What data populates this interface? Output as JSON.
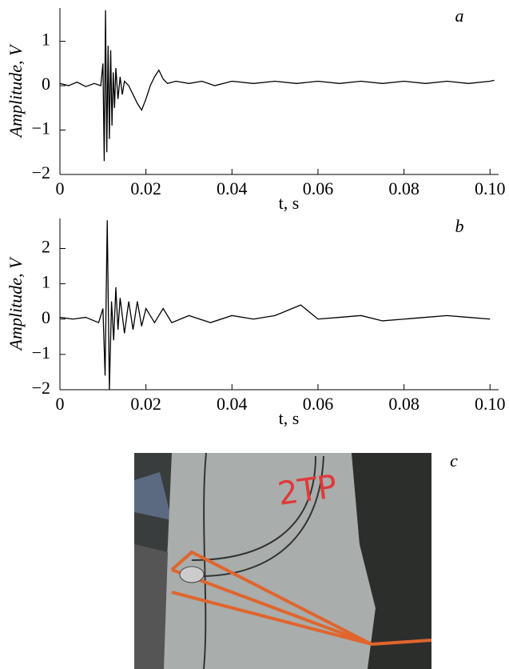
{
  "chart_data": [
    {
      "type": "line",
      "panel_label": "a",
      "xlabel": "t, s",
      "ylabel": "Amplitude, V",
      "xlim": [
        0,
        0.102
      ],
      "ylim": [
        -2,
        1.75
      ],
      "xticks": [
        0,
        0.02,
        0.04,
        0.06,
        0.08,
        {
          "value": 0.1,
          "label": "0.10"
        }
      ],
      "yticks": [
        {
          "value": -2,
          "label": "−2"
        },
        {
          "value": -1,
          "label": "−1"
        },
        0,
        1
      ],
      "x": [
        0,
        0.002,
        0.004,
        0.006,
        0.008,
        0.0095,
        0.01,
        0.0103,
        0.0106,
        0.0109,
        0.0112,
        0.0115,
        0.0118,
        0.0121,
        0.0124,
        0.0127,
        0.013,
        0.0135,
        0.014,
        0.0145,
        0.015,
        0.016,
        0.017,
        0.018,
        0.019,
        0.02,
        0.021,
        0.022,
        0.023,
        0.024,
        0.025,
        0.027,
        0.03,
        0.033,
        0.036,
        0.04,
        0.045,
        0.05,
        0.055,
        0.06,
        0.065,
        0.07,
        0.075,
        0.08,
        0.085,
        0.09,
        0.095,
        0.1,
        0.101
      ],
      "series": [
        {
          "color": "#000000",
          "values": [
            0.05,
            0.0,
            0.08,
            -0.02,
            0.05,
            0.0,
            0.5,
            -1.7,
            1.7,
            -1.5,
            0.9,
            -1.2,
            0.8,
            -0.9,
            0.3,
            -0.5,
            0.4,
            -0.3,
            0.2,
            -0.2,
            0.1,
            0.0,
            -0.2,
            -0.4,
            -0.55,
            -0.3,
            0.0,
            0.2,
            0.35,
            0.15,
            0.05,
            0.1,
            0.05,
            0.1,
            0.0,
            0.1,
            0.05,
            0.1,
            0.05,
            0.1,
            0.05,
            0.1,
            0.05,
            0.1,
            0.05,
            0.1,
            0.05,
            0.1,
            0.12
          ]
        }
      ]
    },
    {
      "type": "line",
      "panel_label": "b",
      "xlabel": "t, s",
      "ylabel": "Amplitude, V",
      "xlim": [
        0,
        0.102
      ],
      "ylim": [
        -2,
        2.85
      ],
      "xticks": [
        0,
        0.02,
        0.04,
        0.06,
        0.08,
        {
          "value": 0.1,
          "label": "0.10"
        }
      ],
      "yticks": [
        {
          "value": -2,
          "label": "−2"
        },
        {
          "value": -1,
          "label": "−1"
        },
        0,
        1,
        2
      ],
      "x": [
        0,
        0.003,
        0.006,
        0.009,
        0.01,
        0.0105,
        0.011,
        0.0115,
        0.012,
        0.0125,
        0.013,
        0.0135,
        0.014,
        0.015,
        0.016,
        0.017,
        0.018,
        0.019,
        0.02,
        0.022,
        0.024,
        0.026,
        0.03,
        0.035,
        0.04,
        0.045,
        0.05,
        0.056,
        0.06,
        0.065,
        0.07,
        0.075,
        0.08,
        0.085,
        0.09,
        0.095,
        0.1
      ],
      "series": [
        {
          "color": "#000000",
          "values": [
            0.05,
            0.0,
            0.05,
            -0.1,
            0.3,
            -1.6,
            2.8,
            -2.0,
            0.5,
            -0.6,
            0.9,
            -0.3,
            0.6,
            -0.4,
            0.5,
            -0.3,
            0.5,
            -0.2,
            0.3,
            -0.1,
            0.3,
            -0.1,
            0.1,
            -0.1,
            0.1,
            0.0,
            0.1,
            0.4,
            0.0,
            0.05,
            0.1,
            -0.05,
            0.0,
            0.05,
            0.1,
            0.05,
            0.0
          ]
        }
      ]
    }
  ],
  "photo": {
    "label": "c",
    "painted_text": "2TP"
  }
}
